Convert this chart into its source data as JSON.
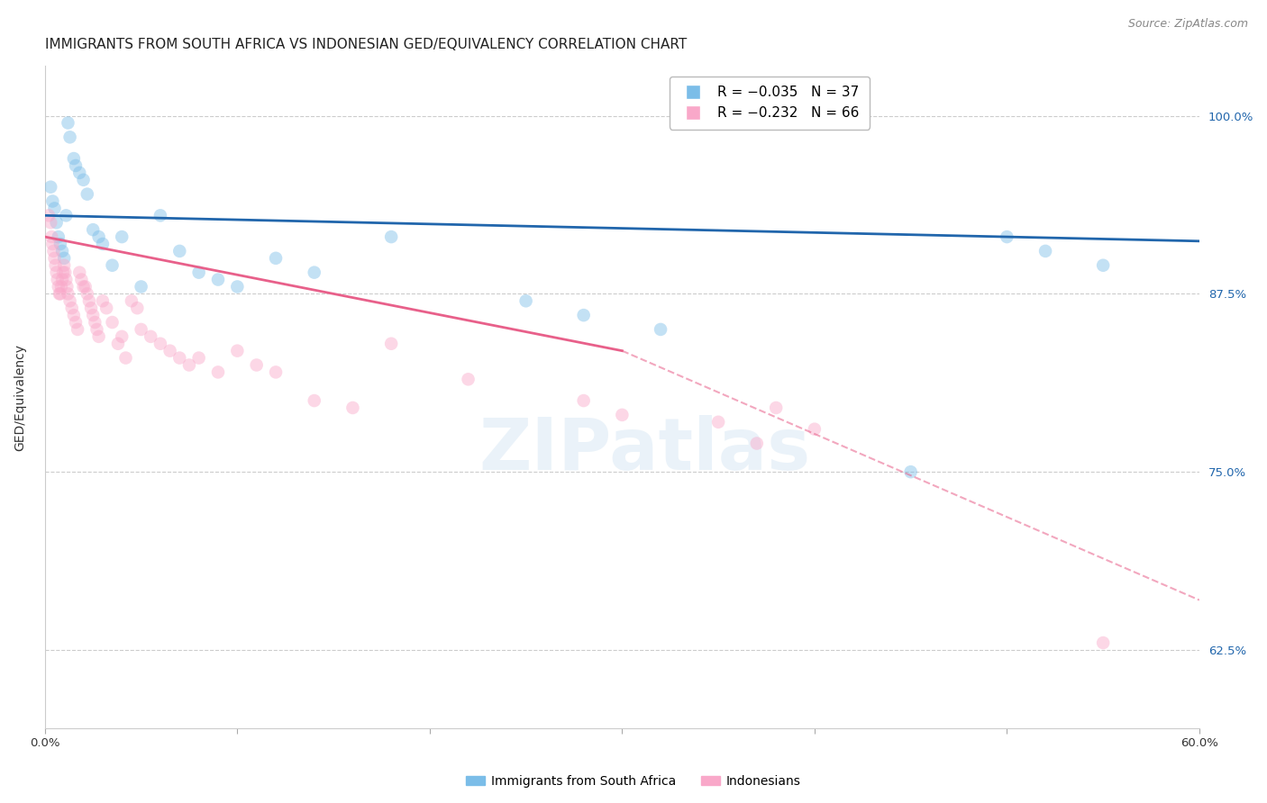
{
  "title": "IMMIGRANTS FROM SOUTH AFRICA VS INDONESIAN GED/EQUIVALENCY CORRELATION CHART",
  "source": "Source: ZipAtlas.com",
  "ylabel": "GED/Equivalency",
  "yticks": [
    100.0,
    87.5,
    75.0,
    62.5
  ],
  "ytick_labels": [
    "100.0%",
    "87.5%",
    "75.0%",
    "62.5%"
  ],
  "xlim": [
    0.0,
    60.0
  ],
  "ylim": [
    57.0,
    103.5
  ],
  "legend_label_blue": "Immigrants from South Africa",
  "legend_label_pink": "Indonesians",
  "blue_scatter_x": [
    0.3,
    0.4,
    0.5,
    0.6,
    0.7,
    0.8,
    0.9,
    1.0,
    1.1,
    1.2,
    1.3,
    1.5,
    1.6,
    1.8,
    2.0,
    2.2,
    2.5,
    2.8,
    3.0,
    3.5,
    4.0,
    5.0,
    6.0,
    7.0,
    8.0,
    9.0,
    10.0,
    12.0,
    14.0,
    18.0,
    25.0,
    28.0,
    32.0,
    45.0,
    50.0,
    52.0,
    55.0
  ],
  "blue_scatter_y": [
    95.0,
    94.0,
    93.5,
    92.5,
    91.5,
    91.0,
    90.5,
    90.0,
    93.0,
    99.5,
    98.5,
    97.0,
    96.5,
    96.0,
    95.5,
    94.5,
    92.0,
    91.5,
    91.0,
    89.5,
    91.5,
    88.0,
    93.0,
    90.5,
    89.0,
    88.5,
    88.0,
    90.0,
    89.0,
    91.5,
    87.0,
    86.0,
    85.0,
    75.0,
    91.5,
    90.5,
    89.5
  ],
  "pink_scatter_x": [
    0.2,
    0.3,
    0.35,
    0.4,
    0.45,
    0.5,
    0.55,
    0.6,
    0.65,
    0.7,
    0.75,
    0.8,
    0.85,
    0.9,
    0.95,
    1.0,
    1.05,
    1.1,
    1.15,
    1.2,
    1.3,
    1.4,
    1.5,
    1.6,
    1.7,
    1.8,
    1.9,
    2.0,
    2.1,
    2.2,
    2.3,
    2.4,
    2.5,
    2.6,
    2.7,
    2.8,
    3.0,
    3.2,
    3.5,
    3.8,
    4.0,
    4.2,
    4.5,
    4.8,
    5.0,
    5.5,
    6.0,
    6.5,
    7.0,
    7.5,
    8.0,
    9.0,
    10.0,
    11.0,
    12.0,
    14.0,
    16.0,
    18.0,
    22.0,
    28.0,
    30.0,
    35.0,
    37.0,
    38.0,
    40.0,
    55.0
  ],
  "pink_scatter_y": [
    93.0,
    92.5,
    91.5,
    91.0,
    90.5,
    90.0,
    89.5,
    89.0,
    88.5,
    88.0,
    87.5,
    87.5,
    88.0,
    88.5,
    89.0,
    89.5,
    89.0,
    88.5,
    88.0,
    87.5,
    87.0,
    86.5,
    86.0,
    85.5,
    85.0,
    89.0,
    88.5,
    88.0,
    88.0,
    87.5,
    87.0,
    86.5,
    86.0,
    85.5,
    85.0,
    84.5,
    87.0,
    86.5,
    85.5,
    84.0,
    84.5,
    83.0,
    87.0,
    86.5,
    85.0,
    84.5,
    84.0,
    83.5,
    83.0,
    82.5,
    83.0,
    82.0,
    83.5,
    82.5,
    82.0,
    80.0,
    79.5,
    84.0,
    81.5,
    80.0,
    79.0,
    78.5,
    77.0,
    79.5,
    78.0,
    63.0
  ],
  "blue_line_x": [
    0.0,
    60.0
  ],
  "blue_line_y": [
    93.0,
    91.2
  ],
  "pink_solid_line_x": [
    0.0,
    30.0
  ],
  "pink_solid_line_y": [
    91.5,
    83.5
  ],
  "pink_dashed_line_x": [
    30.0,
    60.0
  ],
  "pink_dashed_line_y": [
    83.5,
    66.0
  ],
  "scatter_size": 110,
  "scatter_alpha": 0.45,
  "blue_color": "#7bbde8",
  "pink_color": "#f9a8c9",
  "line_blue_color": "#2166ac",
  "line_pink_color": "#e8608a",
  "grid_color": "#cccccc",
  "background_color": "#ffffff",
  "title_fontsize": 11,
  "axis_label_fontsize": 10,
  "tick_fontsize": 9.5,
  "source_fontsize": 9
}
